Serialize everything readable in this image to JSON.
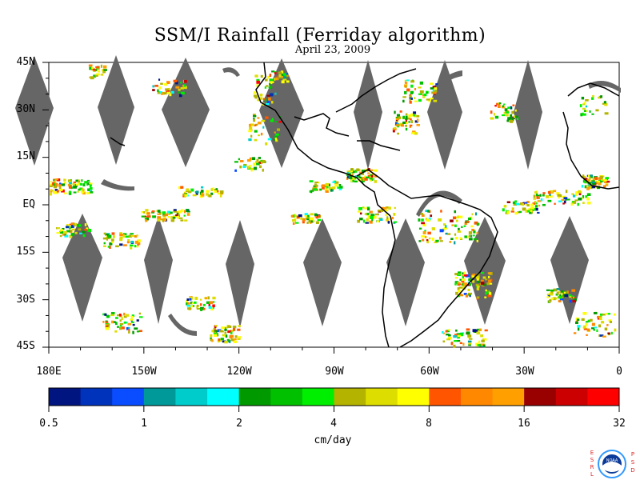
{
  "title": "SSM/I Rainfall (Ferriday algorithm)",
  "date": "April 23, 2009",
  "lat_labels": [
    "45N",
    "30N",
    "15N",
    "EQ",
    "15S",
    "30S",
    "45S"
  ],
  "lon_labels": [
    "180E",
    "150W",
    "120W",
    "90W",
    "60W",
    "30W",
    "0"
  ],
  "colorbar": {
    "tick_labels": [
      "0.5",
      "1",
      "2",
      "4",
      "8",
      "16",
      "32"
    ],
    "units": "cm/day",
    "colors": [
      "#00157f",
      "#0033bb",
      "#0a4cff",
      "#009999",
      "#00cccc",
      "#00ffff",
      "#009900",
      "#00c000",
      "#00ee00",
      "#b3b300",
      "#dddd00",
      "#ffff00",
      "#ff5500",
      "#ff8800",
      "#ffa000",
      "#990000",
      "#cc0000",
      "#ff0000"
    ]
  },
  "logo": {
    "left_letters": "ESRL",
    "right_letters": "PSD",
    "center_text": "NOAA"
  },
  "map": {
    "lat_range": [
      -45,
      45
    ],
    "lon_range": [
      -180,
      0
    ],
    "swath_gap_color": "#666666",
    "coastline_color": "#000000"
  }
}
